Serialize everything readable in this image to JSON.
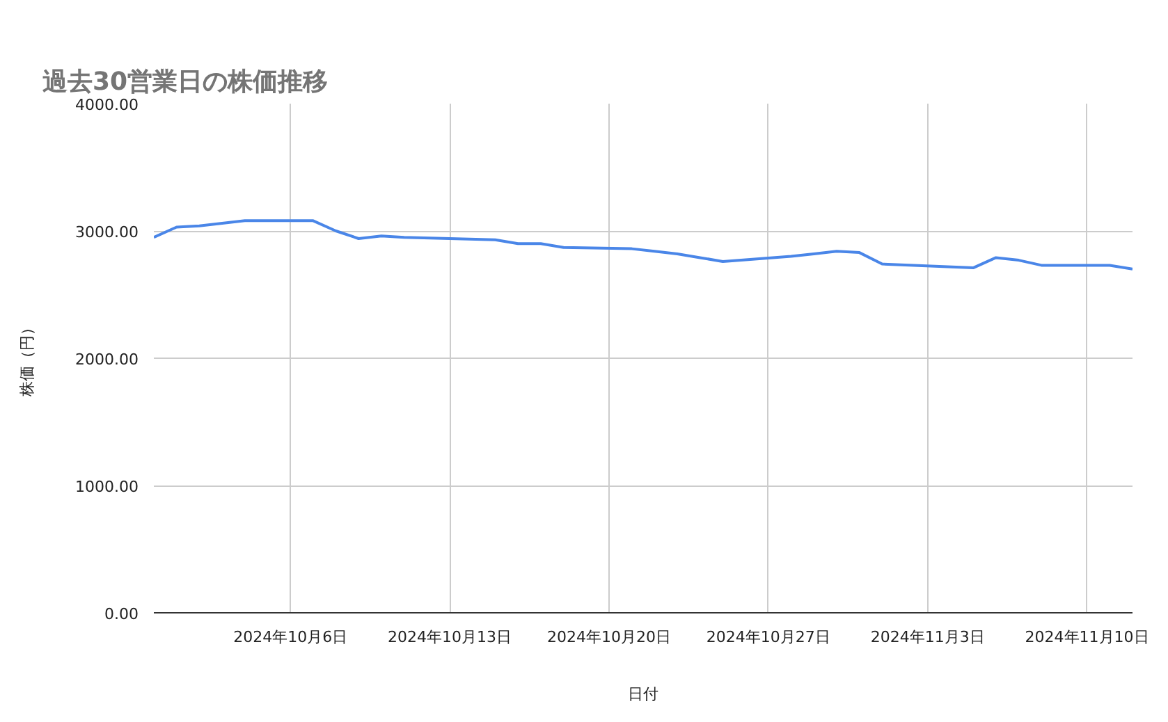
{
  "chart_data": {
    "type": "line",
    "title": "過去30営業日の株価推移",
    "xlabel": "日付",
    "ylabel": "株価（円）",
    "x": [
      "2024-09-30",
      "2024-10-01",
      "2024-10-02",
      "2024-10-03",
      "2024-10-04",
      "2024-10-07",
      "2024-10-08",
      "2024-10-09",
      "2024-10-10",
      "2024-10-11",
      "2024-10-15",
      "2024-10-16",
      "2024-10-17",
      "2024-10-18",
      "2024-10-21",
      "2024-10-22",
      "2024-10-23",
      "2024-10-24",
      "2024-10-25",
      "2024-10-28",
      "2024-10-29",
      "2024-10-30",
      "2024-10-31",
      "2024-11-01",
      "2024-11-05",
      "2024-11-06",
      "2024-11-07",
      "2024-11-08",
      "2024-11-11",
      "2024-11-12"
    ],
    "series": [
      {
        "color": "#4a86e8",
        "values": [
          2950,
          3030,
          3040,
          3060,
          3080,
          3080,
          3000,
          2940,
          2960,
          2950,
          2930,
          2900,
          2900,
          2870,
          2860,
          2840,
          2820,
          2790,
          2760,
          2800,
          2820,
          2840,
          2830,
          2740,
          2710,
          2790,
          2770,
          2730,
          2730,
          2700
        ]
      }
    ],
    "xlim": [
      "2024-09-30",
      "2024-11-12"
    ],
    "xticks": [
      {
        "value": "2024-10-06",
        "label": "2024年10月6日"
      },
      {
        "value": "2024-10-13",
        "label": "2024年10月13日"
      },
      {
        "value": "2024-10-20",
        "label": "2024年10月20日"
      },
      {
        "value": "2024-10-27",
        "label": "2024年10月27日"
      },
      {
        "value": "2024-11-03",
        "label": "2024年11月3日"
      },
      {
        "value": "2024-11-10",
        "label": "2024年11月10日"
      }
    ],
    "ylim": [
      0,
      4000
    ],
    "yticks": [
      {
        "value": 0,
        "label": "0.00"
      },
      {
        "value": 1000,
        "label": "1000.00"
      },
      {
        "value": 2000,
        "label": "2000.00"
      },
      {
        "value": 3000,
        "label": "3000.00"
      },
      {
        "value": 4000,
        "label": "4000.00"
      }
    ],
    "grid": true,
    "marker": "none",
    "line_style": "solid"
  }
}
